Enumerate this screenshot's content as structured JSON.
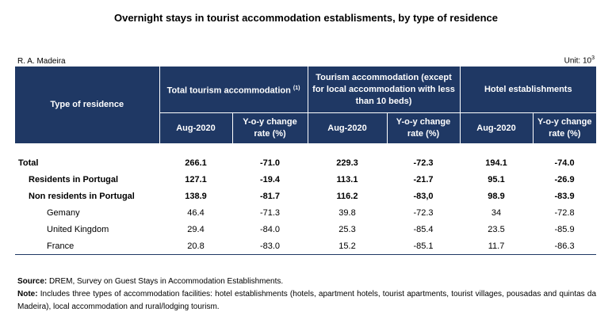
{
  "title": "Overnight stays in tourist accommodation establisments, by type of residence",
  "region": "R. A. Madeira",
  "unit": {
    "text": "Unit: 10",
    "exponent": "3"
  },
  "table": {
    "row_header": "Type of residence",
    "groups": [
      {
        "label": "Total tourism accommodation",
        "note": "(1)"
      },
      {
        "label": "Tourism accommodation (except for local accommodation with less than 10 beds)",
        "note": ""
      },
      {
        "label": "Hotel establishments",
        "note": ""
      }
    ],
    "subheaders": {
      "period": "Aug-2020",
      "change": "Y-o-y change rate (%)"
    },
    "rows": [
      {
        "label": "Total",
        "values": [
          "266.1",
          "-71.0",
          "229.3",
          "-72.3",
          "194.1",
          "-74.0"
        ]
      },
      {
        "label": "Residents in Portugal",
        "values": [
          "127.1",
          "-19.4",
          "113.1",
          "-21.7",
          "95.1",
          "-26.9"
        ]
      },
      {
        "label": "Non residents in Portugal",
        "values": [
          "138.9",
          "-81.7",
          "116.2",
          "-83,0",
          "98.9",
          "-83.9"
        ]
      },
      {
        "label": "Gemany",
        "values": [
          "46.4",
          "-71.3",
          "39.8",
          "-72.3",
          "34",
          "-72.8"
        ]
      },
      {
        "label": "United Kingdom",
        "values": [
          "29.4",
          "-84.0",
          "25.3",
          "-85.4",
          "23.5",
          "-85.9"
        ]
      },
      {
        "label": "France",
        "values": [
          "20.8",
          "-83.0",
          "15.2",
          "-85.1",
          "11.7",
          "-86.3"
        ]
      }
    ]
  },
  "source": {
    "label": "Source:",
    "text": " DREM, Survey on Guest Stays in Accommodation Establishments."
  },
  "note": {
    "label": "Note:",
    "text": " Includes three types of accommodation facilities: hotel establishments (hotels, apartment hotels, tourist apartments, tourist villages, pousadas and quintas da Madeira), local accommodation and rural/lodging tourism."
  },
  "colors": {
    "header_bg": "#1f3864",
    "header_text": "#ffffff"
  }
}
